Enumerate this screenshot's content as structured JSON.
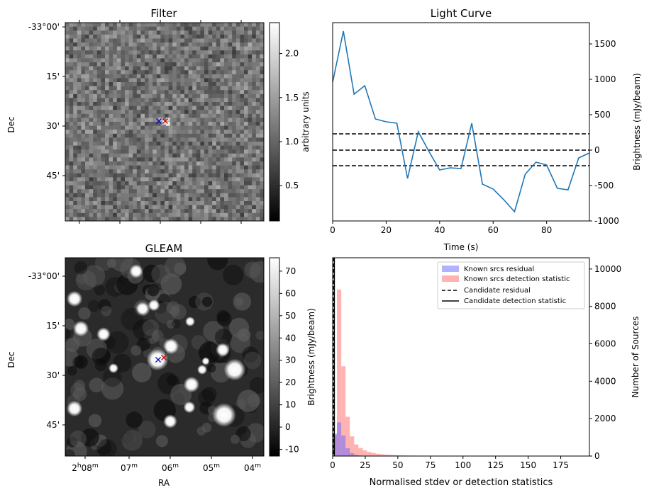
{
  "chart_data": [
    {
      "type": "heatmap",
      "title": "Filter",
      "ylabel": "Dec",
      "y_ticks": [
        "-33°00'",
        "15'",
        "30'",
        "45'"
      ],
      "colorbar": {
        "label": "arbitrary units",
        "ticks": [
          "0.5",
          "1.0",
          "1.5",
          "2.0"
        ],
        "range": [
          0.1,
          2.35
        ],
        "colormap": "gray"
      },
      "markers": [
        {
          "symbol": "x",
          "color": "#0000cc"
        },
        {
          "symbol": "x",
          "color": "#cc0000"
        }
      ]
    },
    {
      "type": "line",
      "title": "Light Curve",
      "xlabel": "Time (s)",
      "ylabel": "Brightness (mJy/beam)",
      "xlim": [
        0,
        96
      ],
      "ylim": [
        -1000,
        1800
      ],
      "x_ticks": [
        "0",
        "20",
        "40",
        "60",
        "80"
      ],
      "y_ticks": [
        "-1000",
        "-500",
        "0",
        "500",
        "1000",
        "1500"
      ],
      "x": [
        0,
        4,
        8,
        12,
        16,
        20,
        24,
        28,
        32,
        36,
        40,
        44,
        48,
        52,
        56,
        60,
        64,
        68,
        72,
        76,
        80,
        84,
        88,
        92,
        96
      ],
      "series": [
        {
          "color": "#1f77b4",
          "values": [
            960,
            1680,
            790,
            910,
            440,
            400,
            380,
            -400,
            260,
            -20,
            -280,
            -250,
            -260,
            380,
            -480,
            -550,
            -700,
            -870,
            -340,
            -170,
            -210,
            -540,
            -560,
            -110,
            -40
          ]
        }
      ],
      "hlines": [
        {
          "y": 230,
          "style": "dashed"
        },
        {
          "y": 0,
          "style": "dashed"
        },
        {
          "y": -220,
          "style": "dashed"
        }
      ]
    },
    {
      "type": "heatmap",
      "title": "GLEAM",
      "xlabel": "RA",
      "ylabel": "Dec",
      "y_ticks": [
        "-33°00'",
        "15'",
        "30'",
        "45'"
      ],
      "x_ticks": [
        "08",
        "07",
        "06",
        "05",
        "04"
      ],
      "x_tick_prefix": "2",
      "x_tick_hour": "h",
      "x_tick_min": "m",
      "colorbar": {
        "label": "Brightness (mJy/beam)",
        "ticks": [
          "-10",
          "0",
          "10",
          "20",
          "30",
          "40",
          "50",
          "60",
          "70"
        ],
        "range": [
          -13,
          76
        ],
        "colormap": "gray"
      },
      "markers": [
        {
          "symbol": "x",
          "color": "#0000cc"
        },
        {
          "symbol": "x",
          "color": "#cc0000"
        }
      ]
    },
    {
      "type": "histogram",
      "xlabel": "Normalised stdev or detection statistics",
      "ylabel_left": "Brightness (mJy/beam)",
      "ylabel_right": "Number of Sources",
      "xlim": [
        0,
        197
      ],
      "ylim": [
        0,
        10600
      ],
      "x_ticks": [
        "0",
        "25",
        "50",
        "75",
        "100",
        "125",
        "150",
        "175"
      ],
      "y_ticks": [
        "0",
        "2000",
        "4000",
        "6000",
        "8000",
        "10000"
      ],
      "bin_width": 3.3,
      "series": [
        {
          "name": "Known srcs residual",
          "color": "#6666ff",
          "values": [
            1200,
            1800,
            1100,
            420,
            150,
            60,
            25,
            10
          ]
        },
        {
          "name": "Known srcs detection statistic",
          "color": "#ff6666",
          "values": [
            1100,
            8900,
            4800,
            2100,
            1050,
            620,
            430,
            300,
            220,
            165,
            125,
            98,
            78,
            62,
            50,
            42,
            35,
            30,
            26,
            23,
            20,
            18,
            16,
            14,
            12,
            11,
            10,
            9,
            8,
            7,
            7,
            6,
            6,
            5,
            5,
            4,
            4,
            4,
            3,
            3,
            3,
            3,
            2,
            2,
            2,
            2,
            2,
            2,
            2,
            2,
            2,
            2,
            2,
            2,
            2,
            2,
            2,
            18,
            2
          ]
        }
      ],
      "vlines": [
        {
          "name": "Candidate residual",
          "x": 0.6,
          "style": "dashed"
        },
        {
          "name": "Candidate detection statistic",
          "x": 1.3,
          "style": "solid"
        }
      ],
      "legend": "top-right"
    }
  ]
}
